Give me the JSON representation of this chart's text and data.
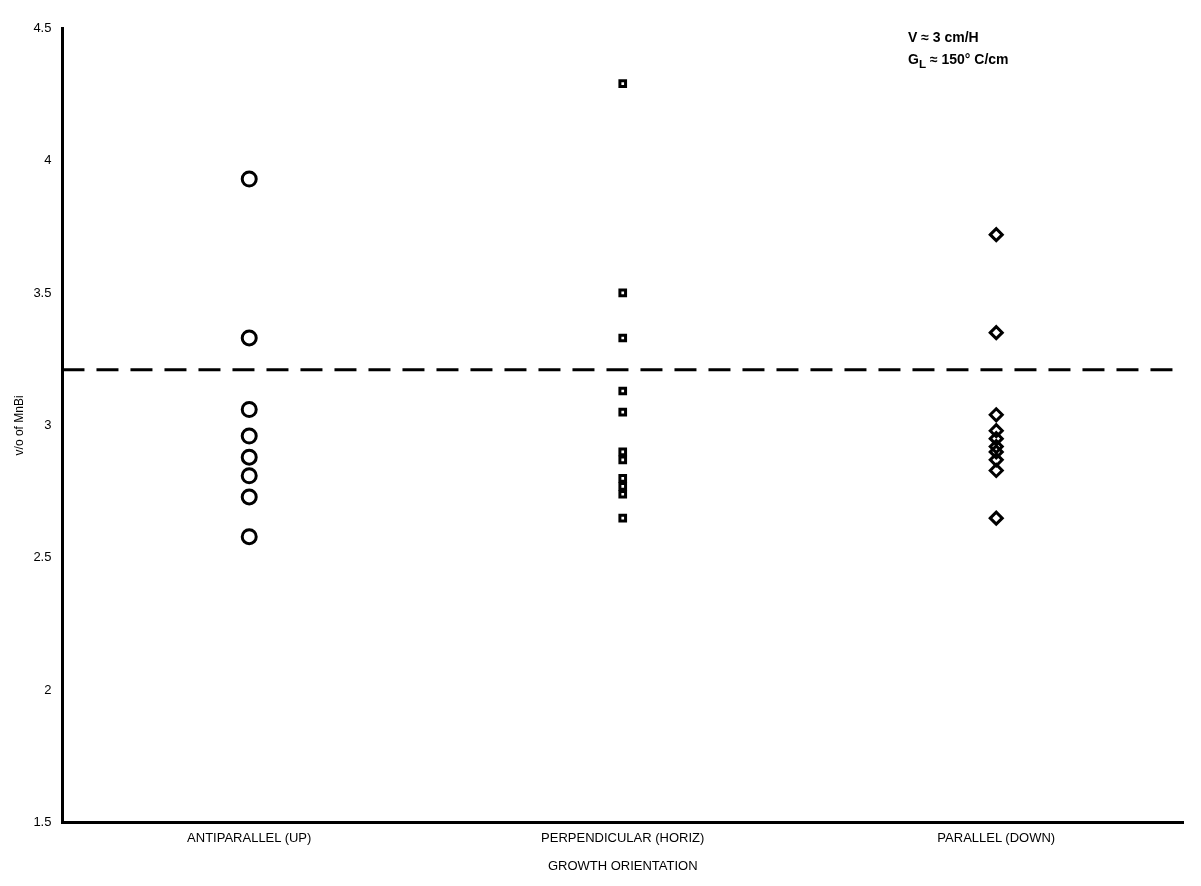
{
  "chart_data": {
    "type": "scatter",
    "xlabel": "GROWTH ORIENTATION",
    "ylabel": "v/o of MnBi",
    "categories": [
      "ANTIPARALLEL (UP)",
      "PERPENDICULAR (HORIZ)",
      "PARALLEL (DOWN)"
    ],
    "series": [
      {
        "color": "#000000",
        "marker": "circle",
        "x": [
          "ANTIPARALLEL (UP)",
          "ANTIPARALLEL (UP)",
          "ANTIPARALLEL (UP)",
          "ANTIPARALLEL (UP)",
          "ANTIPARALLEL (UP)",
          "ANTIPARALLEL (UP)",
          "ANTIPARALLEL (UP)",
          "ANTIPARALLEL (UP)"
        ],
        "values": [
          3.93,
          3.33,
          3.06,
          2.96,
          2.88,
          2.81,
          2.73,
          2.58
        ]
      },
      {
        "color": "#000000",
        "marker": "square",
        "x": [
          "PERPENDICULAR (HORIZ)",
          "PERPENDICULAR (HORIZ)",
          "PERPENDICULAR (HORIZ)",
          "PERPENDICULAR (HORIZ)",
          "PERPENDICULAR (HORIZ)",
          "PERPENDICULAR (HORIZ)",
          "PERPENDICULAR (HORIZ)",
          "PERPENDICULAR (HORIZ)",
          "PERPENDICULAR (HORIZ)",
          "PERPENDICULAR (HORIZ)",
          "PERPENDICULAR (HORIZ)"
        ],
        "values": [
          4.29,
          3.5,
          3.33,
          3.13,
          3.05,
          2.9,
          2.87,
          2.8,
          2.77,
          2.74,
          2.65
        ]
      },
      {
        "color": "#000000",
        "marker": "diamond",
        "x": [
          "PARALLEL (DOWN)",
          "PARALLEL (DOWN)",
          "PARALLEL (DOWN)",
          "PARALLEL (DOWN)",
          "PARALLEL (DOWN)",
          "PARALLEL (DOWN)",
          "PARALLEL (DOWN)",
          "PARALLEL (DOWN)",
          "PARALLEL (DOWN)",
          "PARALLEL (DOWN)"
        ],
        "values": [
          3.72,
          3.35,
          3.04,
          2.98,
          2.95,
          2.92,
          2.9,
          2.87,
          2.83,
          2.65
        ]
      }
    ],
    "ylim": [
      1.5,
      4.5
    ],
    "yticks": [
      1.5,
      2,
      2.5,
      3,
      3.5,
      4,
      4.5
    ],
    "ref_lines": [
      {
        "axis": "y",
        "value": 3.21,
        "color": "#000000",
        "line_style": "dashed"
      }
    ],
    "annotations": [
      "V ≈ 3 cm/H",
      "G$_{L}$ ≈ 150° C/cm"
    ],
    "grid": false,
    "legend": false
  }
}
